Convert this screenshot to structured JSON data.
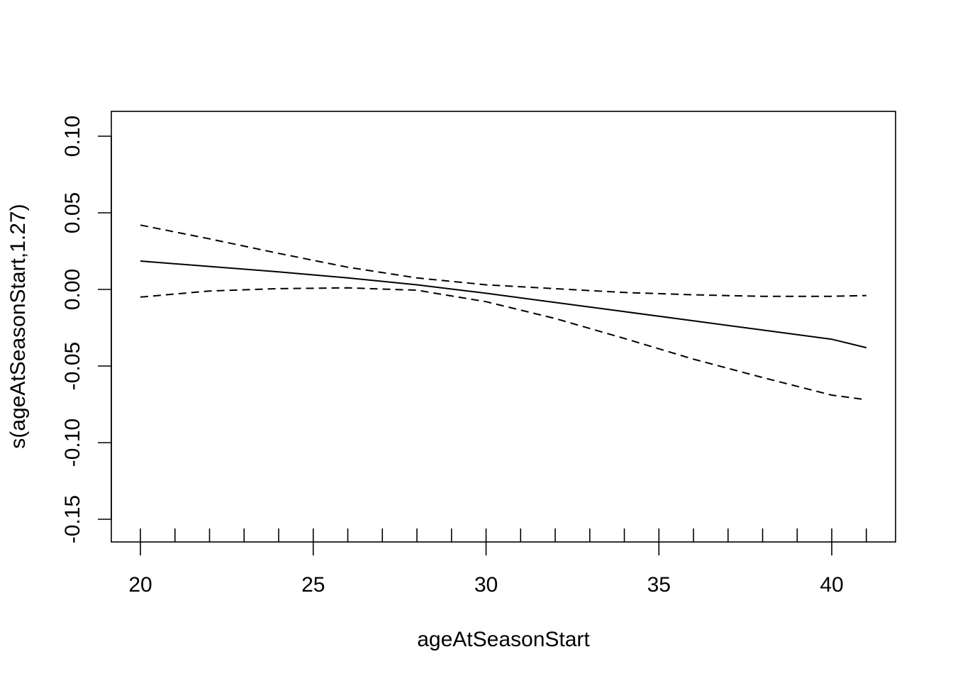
{
  "chart_data": {
    "type": "line",
    "title": "",
    "xlabel": "ageAtSeasonStart",
    "ylabel": "s(ageAtSeasonStart,1.27)",
    "xlim": [
      19.2,
      41.9
    ],
    "ylim": [
      -0.165,
      0.117
    ],
    "x_ticks": [
      20,
      25,
      30,
      35,
      40
    ],
    "x_tick_labels": [
      "20",
      "25",
      "30",
      "35",
      "40"
    ],
    "x_rug": [
      20,
      21,
      22,
      23,
      24,
      25,
      26,
      27,
      28,
      29,
      30,
      31,
      32,
      33,
      34,
      35,
      36,
      37,
      38,
      39,
      40,
      41
    ],
    "y_ticks": [
      -0.15,
      -0.1,
      -0.05,
      0.0,
      0.05,
      0.1
    ],
    "y_tick_labels": [
      "-0.15",
      "-0.10",
      "-0.05",
      "0.00",
      "0.05",
      "0.10"
    ],
    "grid": false,
    "legend": "none",
    "series": [
      {
        "style": "solid",
        "x": [
          20,
          22,
          24,
          26,
          28,
          30,
          32,
          34,
          36,
          38,
          40,
          41
        ],
        "y": [
          0.0185,
          0.015,
          0.0115,
          0.0075,
          0.003,
          -0.0025,
          -0.0085,
          -0.0145,
          -0.0205,
          -0.0265,
          -0.0325,
          -0.038
        ]
      },
      {
        "style": "dashed",
        "x": [
          20,
          22,
          24,
          26,
          28,
          30,
          32,
          34,
          36,
          38,
          40,
          41
        ],
        "y": [
          0.042,
          0.033,
          0.0235,
          0.0145,
          0.0075,
          0.003,
          0.0005,
          -0.002,
          -0.0035,
          -0.0045,
          -0.0045,
          -0.004
        ]
      },
      {
        "style": "dashed",
        "x": [
          20,
          22,
          24,
          26,
          28,
          30,
          32,
          34,
          36,
          38,
          40,
          41
        ],
        "y": [
          -0.005,
          -0.001,
          0.0005,
          0.001,
          -0.0005,
          -0.008,
          -0.019,
          -0.032,
          -0.0455,
          -0.0575,
          -0.069,
          -0.072
        ]
      }
    ]
  }
}
